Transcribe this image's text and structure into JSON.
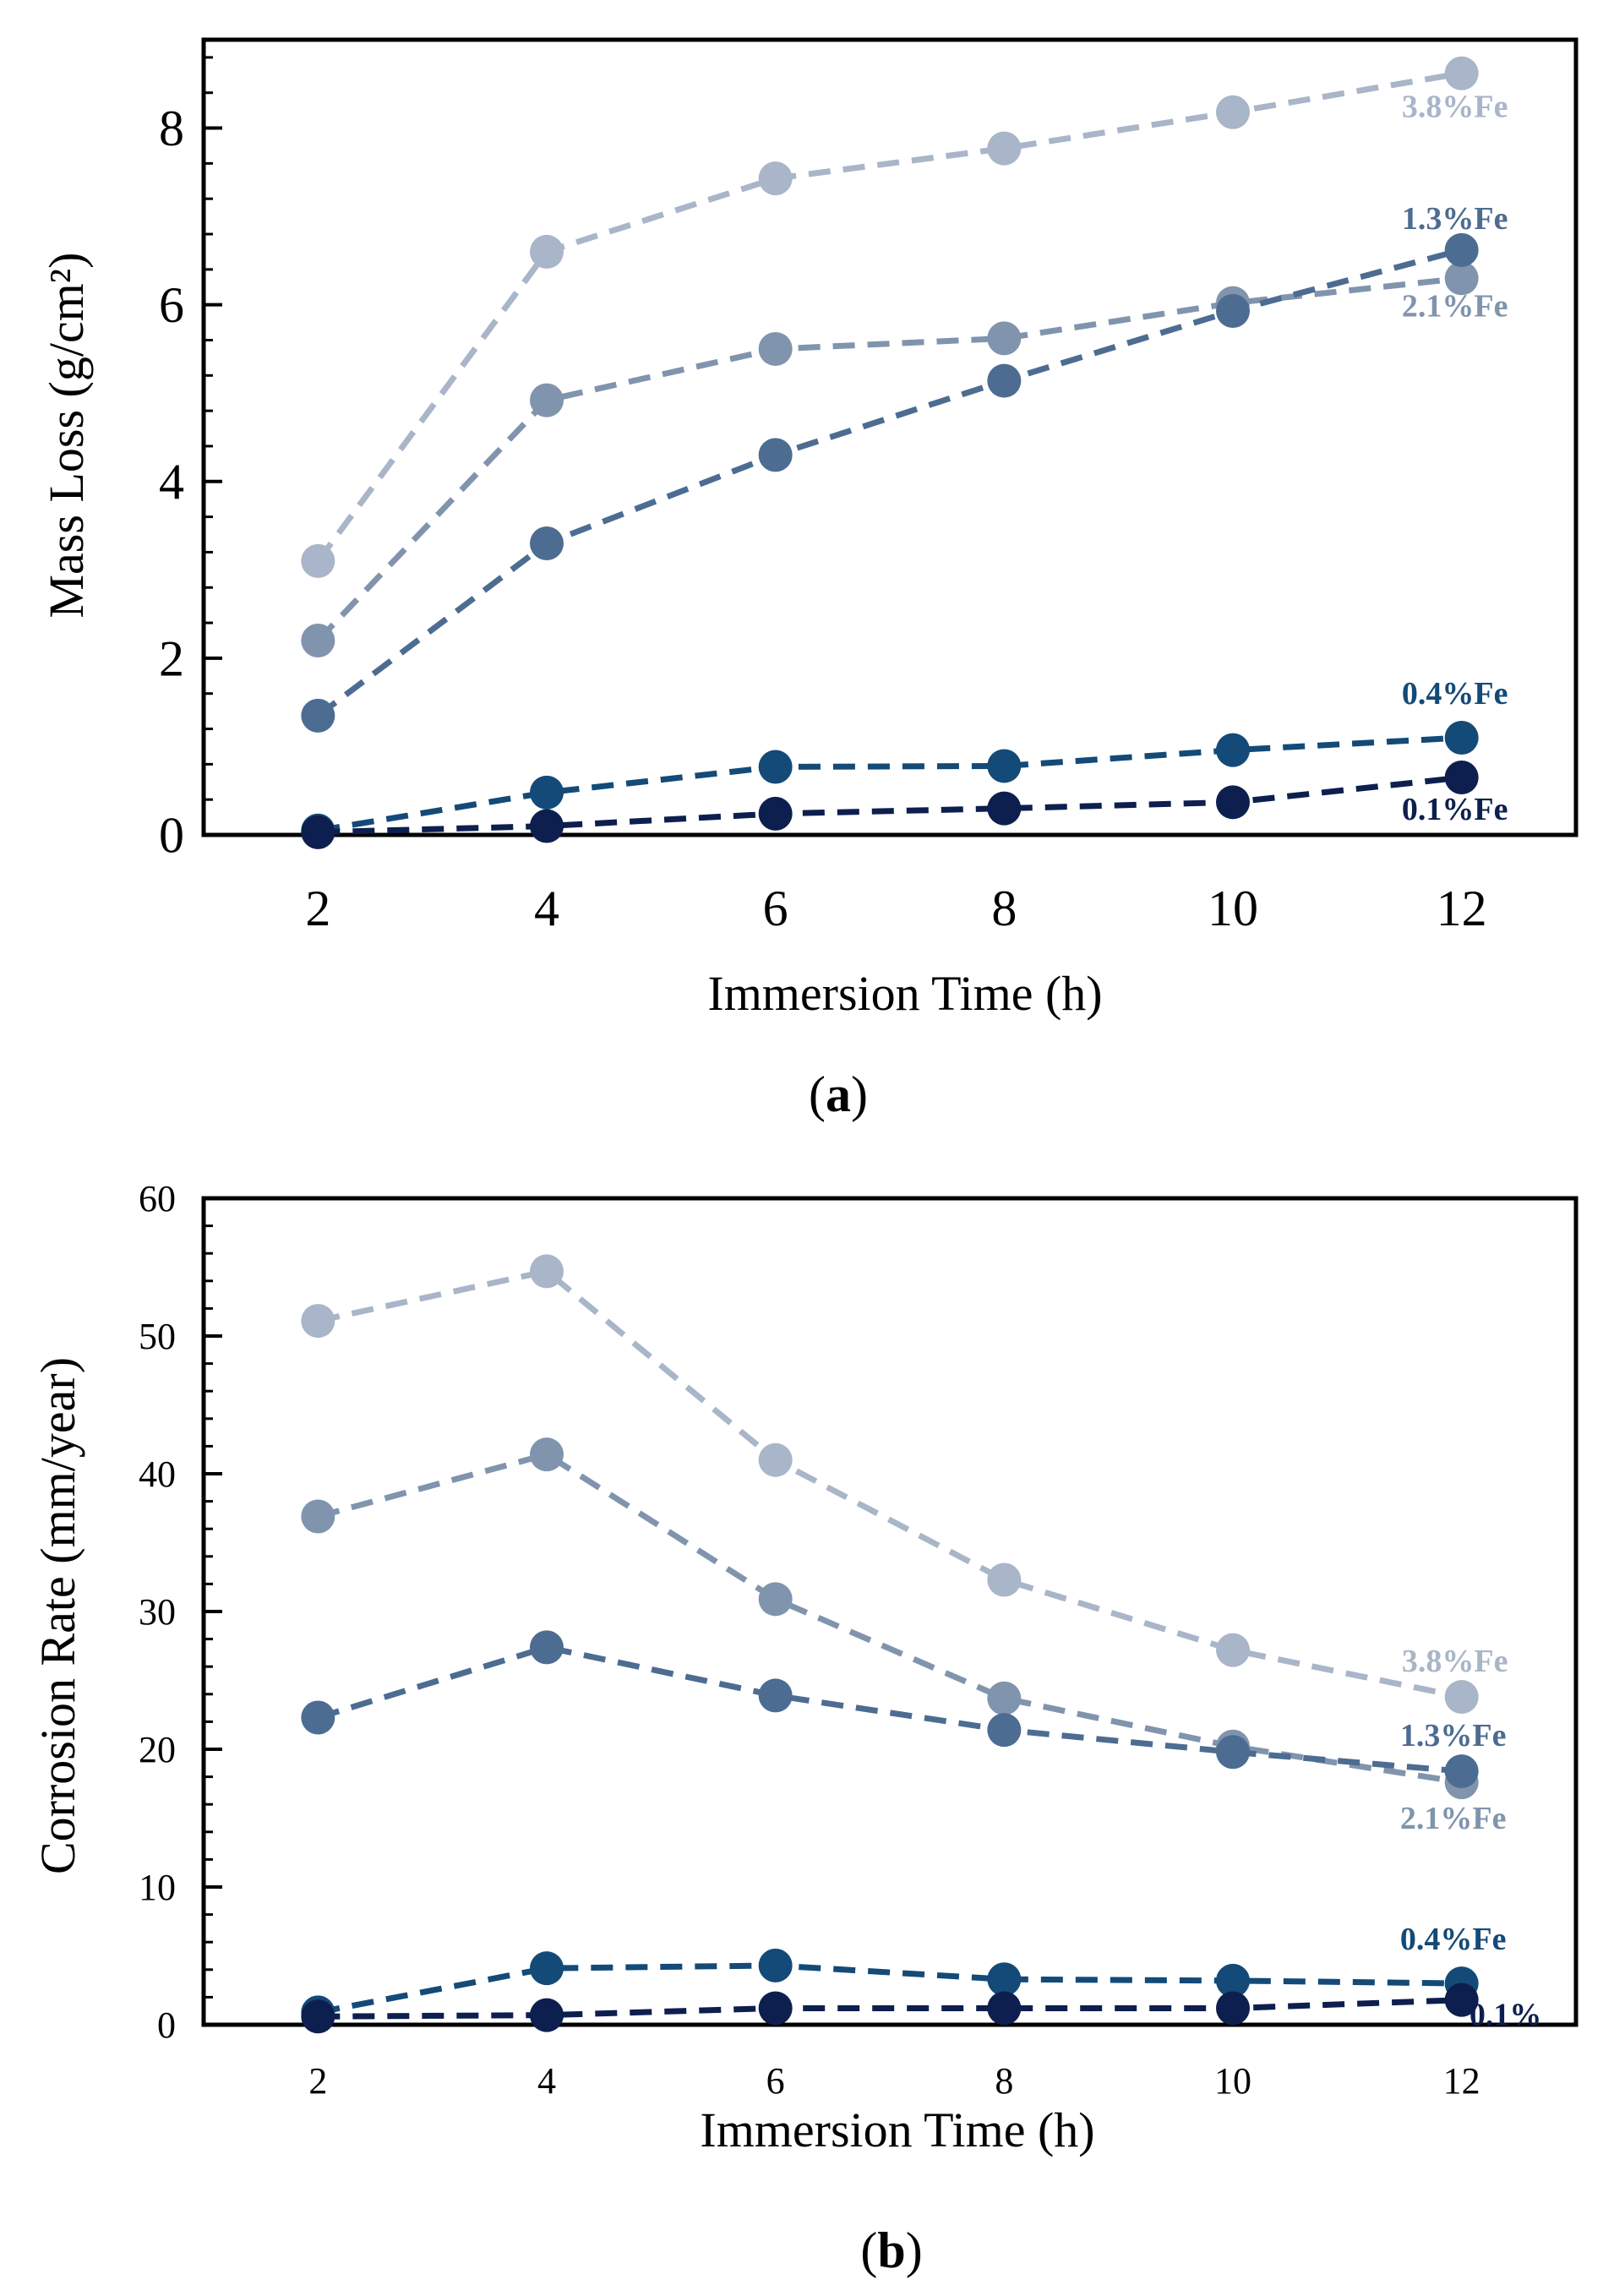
{
  "chart_data": [
    {
      "type": "line",
      "panel": "a",
      "caption_letter": "a",
      "xlabel": "Immersion Time (h)",
      "ylabel": "Mass Loss (g/cm²)",
      "x": [
        2,
        4,
        6,
        8,
        10,
        12
      ],
      "xlim": [
        1,
        13
      ],
      "ylim": [
        0,
        9
      ],
      "yticks": [
        0,
        2,
        4,
        6,
        8
      ],
      "series": [
        {
          "name": "3.8%Fe",
          "color": "#a9b5c8",
          "values": [
            3.1,
            6.6,
            7.43,
            7.77,
            8.18,
            8.62
          ]
        },
        {
          "name": "2.1%Fe",
          "color": "#8094ad",
          "values": [
            2.2,
            4.92,
            5.5,
            5.62,
            6.02,
            6.3
          ]
        },
        {
          "name": "1.3%Fe",
          "color": "#4d6c91",
          "values": [
            1.35,
            3.3,
            4.3,
            5.14,
            5.93,
            6.62
          ]
        },
        {
          "name": "0.4%Fe",
          "color": "#134a78",
          "values": [
            0.05,
            0.48,
            0.77,
            0.78,
            0.96,
            1.1
          ]
        },
        {
          "name": "0.1%Fe",
          "color": "#0d1f4e",
          "values": [
            0.03,
            0.1,
            0.24,
            0.3,
            0.37,
            0.65
          ]
        }
      ]
    },
    {
      "type": "line",
      "panel": "b",
      "caption_letter": "b",
      "xlabel": "Immersion Time (h)",
      "ylabel": "Corrosion Rate (mm/year)",
      "x": [
        2,
        4,
        6,
        8,
        10,
        12
      ],
      "xlim": [
        1,
        13
      ],
      "ylim": [
        0,
        60
      ],
      "yticks": [
        0,
        10,
        20,
        30,
        40,
        50,
        60
      ],
      "series": [
        {
          "name": "3.8%Fe",
          "color": "#a9b5c8",
          "values": [
            51.1,
            54.7,
            41.0,
            32.3,
            27.2,
            23.8
          ]
        },
        {
          "name": "2.1%Fe",
          "color": "#8094ad",
          "values": [
            36.9,
            41.4,
            30.9,
            23.7,
            20.2,
            17.6
          ]
        },
        {
          "name": "1.3%Fe",
          "color": "#4d6c91",
          "values": [
            22.3,
            27.4,
            23.9,
            21.4,
            19.8,
            18.4
          ]
        },
        {
          "name": "0.4%Fe",
          "color": "#134a78",
          "values": [
            0.9,
            4.1,
            4.3,
            3.3,
            3.2,
            3.0
          ]
        },
        {
          "name": "0.1%",
          "color": "#0d1f4e",
          "values": [
            0.6,
            0.7,
            1.2,
            1.2,
            1.2,
            1.8
          ]
        }
      ]
    }
  ]
}
